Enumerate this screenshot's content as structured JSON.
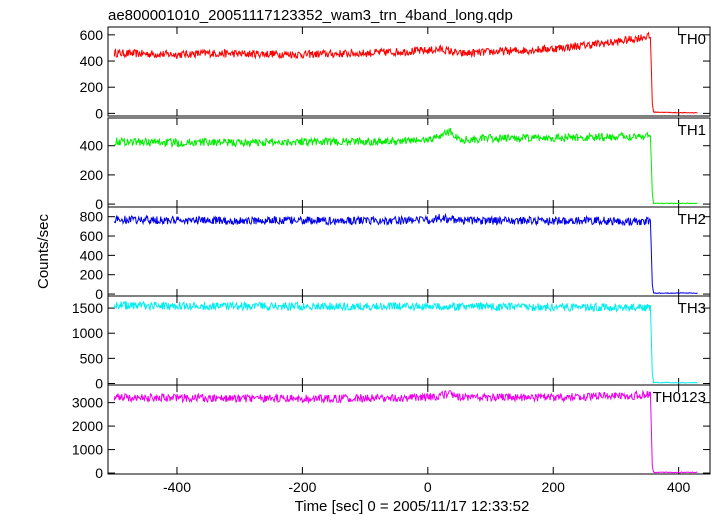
{
  "chart_data": {
    "type": "line",
    "title": "ae800001010_20051117123352_wam3_trn_4band_long.qdp",
    "xlabel": "Time [sec] 0 = 2005/11/17 12:33:52",
    "ylabel": "Counts/sec",
    "xlim": [
      -510,
      450
    ],
    "xticks": [
      "-400",
      "-200",
      "0",
      "200",
      "400"
    ],
    "grid": false,
    "panels": [
      {
        "name": "TH0",
        "color": "#ff0000",
        "ylim": [
          -20,
          660
        ],
        "yticks": [
          "0",
          "200",
          "400",
          "600"
        ],
        "x": [
          -500,
          -450,
          -400,
          -350,
          -300,
          -250,
          -200,
          -150,
          -100,
          -50,
          0,
          20,
          40,
          50,
          100,
          150,
          200,
          250,
          300,
          330,
          350,
          355,
          358,
          360,
          400,
          430
        ],
        "y": [
          460,
          455,
          450,
          460,
          455,
          455,
          450,
          455,
          460,
          470,
          480,
          490,
          470,
          455,
          470,
          480,
          495,
          520,
          545,
          570,
          590,
          580,
          80,
          10,
          5,
          5
        ]
      },
      {
        "name": "TH1",
        "color": "#00ee00",
        "ylim": [
          -20,
          590
        ],
        "yticks": [
          "0",
          "200",
          "400"
        ],
        "x": [
          -500,
          -450,
          -400,
          -350,
          -300,
          -250,
          -200,
          -150,
          -100,
          -50,
          0,
          20,
          35,
          50,
          100,
          150,
          200,
          250,
          300,
          350,
          355,
          358,
          360,
          400,
          430
        ],
        "y": [
          430,
          425,
          420,
          425,
          420,
          425,
          430,
          425,
          430,
          430,
          440,
          470,
          500,
          440,
          450,
          450,
          455,
          455,
          460,
          470,
          460,
          80,
          5,
          5,
          5
        ]
      },
      {
        "name": "TH2",
        "color": "#0000ee",
        "ylim": [
          -20,
          900
        ],
        "yticks": [
          "0",
          "200",
          "400",
          "600",
          "800"
        ],
        "x": [
          -500,
          -450,
          -400,
          -350,
          -300,
          -250,
          -200,
          -150,
          -100,
          -50,
          0,
          20,
          50,
          100,
          150,
          200,
          250,
          300,
          350,
          355,
          358,
          360,
          400,
          430
        ],
        "y": [
          770,
          765,
          760,
          760,
          755,
          760,
          760,
          755,
          760,
          760,
          765,
          790,
          760,
          760,
          760,
          755,
          760,
          755,
          750,
          740,
          100,
          10,
          10,
          10
        ]
      },
      {
        "name": "TH3",
        "color": "#00eeee",
        "ylim": [
          -30,
          1740
        ],
        "yticks": [
          "0",
          "500",
          "1000",
          "1500"
        ],
        "x": [
          -500,
          -450,
          -400,
          -350,
          -300,
          -250,
          -200,
          -150,
          -100,
          -50,
          0,
          20,
          50,
          100,
          150,
          200,
          250,
          300,
          350,
          355,
          358,
          360,
          400,
          430
        ],
        "y": [
          1560,
          1550,
          1545,
          1540,
          1535,
          1540,
          1535,
          1530,
          1530,
          1530,
          1530,
          1540,
          1530,
          1525,
          1520,
          1520,
          1520,
          1515,
          1510,
          1500,
          200,
          20,
          15,
          15
        ]
      },
      {
        "name": "TH0123",
        "color": "#ee00ee",
        "ylim": [
          -40,
          3750
        ],
        "yticks": [
          "0",
          "1000",
          "2000",
          "3000"
        ],
        "x": [
          -500,
          -450,
          -400,
          -350,
          -300,
          -250,
          -200,
          -150,
          -100,
          -50,
          0,
          20,
          35,
          50,
          100,
          150,
          200,
          250,
          300,
          350,
          355,
          358,
          360,
          400,
          430
        ],
        "y": [
          3220,
          3210,
          3200,
          3190,
          3180,
          3190,
          3180,
          3180,
          3190,
          3190,
          3220,
          3300,
          3380,
          3220,
          3220,
          3220,
          3230,
          3250,
          3270,
          3320,
          3300,
          300,
          30,
          30,
          30
        ]
      }
    ]
  }
}
